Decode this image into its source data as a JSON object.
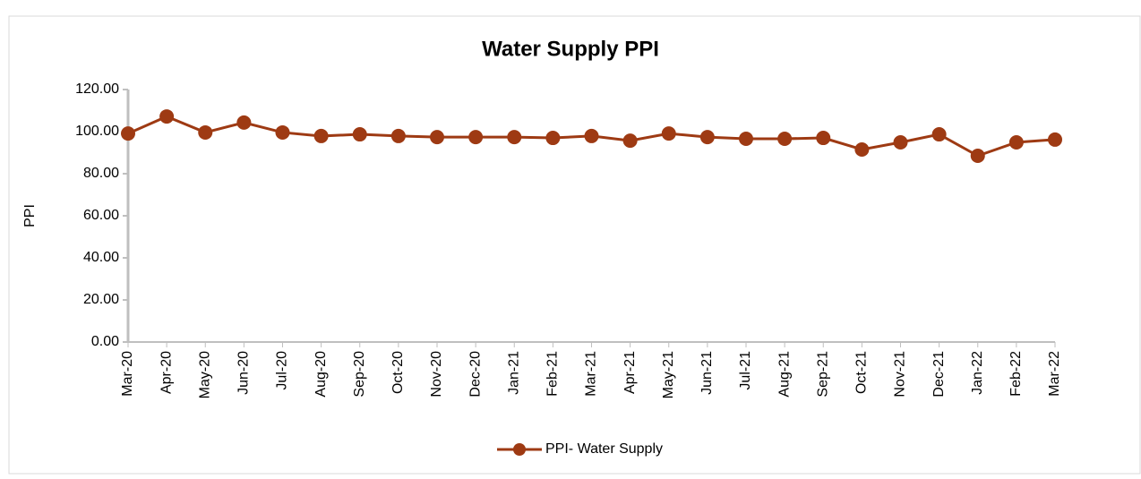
{
  "chart_data": {
    "type": "line",
    "title": "Water Supply PPI",
    "y_label": "PPI",
    "categories": [
      "Mar-20",
      "Apr-20",
      "May-20",
      "Jun-20",
      "Jul-20",
      "Aug-20",
      "Sep-20",
      "Oct-20",
      "Nov-20",
      "Dec-20",
      "Jan-21",
      "Feb-21",
      "Mar-21",
      "Apr-21",
      "May-21",
      "Jun-21",
      "Jul-21",
      "Aug-21",
      "Sep-21",
      "Oct-21",
      "Nov-21",
      "Dec-21",
      "Jan-22",
      "Feb-22",
      "Mar-22"
    ],
    "series": [
      {
        "name": "PPI- Water Supply",
        "color": "#9e3a13",
        "values": [
          99.1,
          107.2,
          99.6,
          104.3,
          99.6,
          97.9,
          98.7,
          97.9,
          97.4,
          97.4,
          97.4,
          97.0,
          97.9,
          95.7,
          99.1,
          97.4,
          96.6,
          96.6,
          97.0,
          91.5,
          94.9,
          98.7,
          88.5,
          94.9,
          96.2
        ]
      }
    ],
    "ylim": [
      0,
      120
    ],
    "yticks": [
      {
        "value": 0,
        "label": "0.00"
      },
      {
        "value": 20,
        "label": "20.00"
      },
      {
        "value": 40,
        "label": "40.00"
      },
      {
        "value": 60,
        "label": "60.00"
      },
      {
        "value": 80,
        "label": "80.00"
      },
      {
        "value": 100,
        "label": "100.00"
      },
      {
        "value": 120,
        "label": "120.00"
      }
    ],
    "legend": "bottom"
  }
}
